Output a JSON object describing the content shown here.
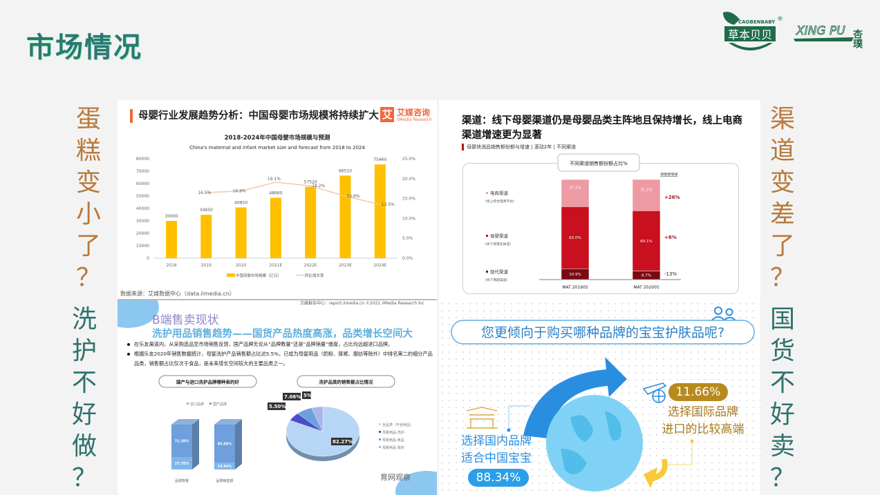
{
  "slide": {
    "title": "市场情况",
    "left_captions": [
      "蛋糕变小了？",
      "洗护不好做？"
    ],
    "right_captions": [
      "渠道变差了？",
      "国货不好卖？"
    ],
    "colors": {
      "orange_caption": "#b9793b",
      "teal_caption": "#2e716d",
      "title": "#2f7673"
    }
  },
  "logos": {
    "brand1_en": "CAOBENBABY",
    "brand1_cn": "草本贝贝",
    "brand2_en": "XING PU",
    "brand2_cn": "杏璞",
    "registered": "®"
  },
  "panel1": {
    "heading": "母婴行业发展趋势分析：中国母婴市场规模将持续扩大",
    "brand_cn": "艾媒咨询",
    "brand_en": "iiMedia Research",
    "brand_icon": "艾",
    "source": "数据来源：艾媒数据中心（data.iimedia.cn）",
    "footer": "艾媒报告中心：report.iimedia.cn  ©2021  iiMedia Research Inc"
  },
  "panel2": {
    "heading": "渠道：线下母婴渠道仍是母婴品类主阵地且保持增长，线上电商渠道增速更为显著",
    "subheading": "母婴快消品销售额份额与增速 | 滚动2年 | 不同渠道"
  },
  "panel3": {
    "heading": "B端售卖现状",
    "subtitle": "洗护用品销售趋势——国货产品热度高涨，品类增长空间大",
    "bullets": [
      "在乐友渠道内，从采购选品至市场销售反馈，国产品牌无论从“品牌数量”还是“品牌销量”维度，占比均远超进口品牌。",
      "根据乐友2020年销售数据统计，母婴洗护产品销售额占比达5.5%，已成为母婴用品（奶粉、尿裤、服纺等除外）中排名第二的细分产品品类，销售额占比仅次于食品，是未来增长空间较大的主要品类之一。"
    ],
    "watermark": "育网观察"
  },
  "panel4": {
    "question": "您更倾向于购买哪种品牌的宝宝护肤品呢?",
    "domestic_label": [
      "选择国内品牌",
      "适合中国宝宝"
    ],
    "domestic_value": "88.34%",
    "intl_label": [
      "选择国际品牌",
      "进口的比较高端"
    ],
    "intl_value": "11.66%",
    "icons": [
      "users-icon",
      "gate-tower-icon",
      "airplane-globe-icon",
      "globe-icon",
      "curved-arrow-icon"
    ]
  },
  "chart_data": [
    {
      "type": "bar",
      "title": "2018-2024年中国母婴市场规模与预测",
      "subtitle": "China's maternal and infant market size and forecast from 2018 to 2024",
      "categories": [
        "2018",
        "2019",
        "2020",
        "2021E",
        "2022E",
        "2023E",
        "2024E"
      ],
      "series": [
        {
          "name": "中国母婴市场规模（亿元）",
          "type": "bar",
          "axis": "left",
          "color": "#ffc000",
          "values": [
            30000,
            34950,
            40850,
            48660,
            57520,
            66510,
            75460
          ]
        },
        {
          "name": "同比增长率",
          "type": "line",
          "axis": "right",
          "color": "#f6c3a1",
          "values": [
            null,
            16.5,
            16.9,
            19.1,
            18.2,
            15.6,
            13.5
          ]
        }
      ],
      "y_left": {
        "range": [
          0,
          80000
        ],
        "ticks": [
          "0",
          "10000",
          "20000",
          "30000",
          "40000",
          "50000",
          "60000",
          "70000",
          "80000"
        ]
      },
      "y_right": {
        "range": [
          0,
          25
        ],
        "ticks": [
          "0.0%",
          "5.0%",
          "10.0%",
          "15.0%",
          "20.0%",
          "25.0%"
        ]
      },
      "legend": "bottom"
    },
    {
      "type": "bar",
      "stacked": true,
      "title": "不同渠道销售额份额占比%",
      "growth_header": "销售额增速",
      "categories": [
        "MAT 201905",
        "MAT 202005"
      ],
      "series": [
        {
          "name": "现代渠道",
          "note": "（线下商超渠道）",
          "color": "#7a0a12",
          "values": [
            10.9,
            8.7
          ],
          "growth": "-13%"
        },
        {
          "name": "母婴渠道",
          "note": "（线下母婴实体店）",
          "color": "#c8101e",
          "values": [
            62.0,
            60.1
          ],
          "growth": "+6%"
        },
        {
          "name": "电商渠道",
          "note": "（线上综合电商平台）",
          "color": "#ee9aa3",
          "values": [
            27.1,
            31.2
          ],
          "growth": "+26%"
        }
      ],
      "legend": "left"
    },
    {
      "type": "bar",
      "stacked": true,
      "title": "国产与进口洗护品牌哪种卖的好",
      "categories": [
        "品牌数量",
        "品牌销售额"
      ],
      "series": [
        {
          "name": "进口品牌",
          "color": "#7fb6ea",
          "values": [
            27.7,
            14.94
          ]
        },
        {
          "name": "国产品牌",
          "color": "#6f9fdc",
          "values": [
            72.3,
            85.06
          ]
        }
      ],
      "legend": "top"
    },
    {
      "type": "pie",
      "title": "洗护品类的销售额占比情况",
      "labels": [
        "全品类（不含用品）",
        "母婴用品-洗护",
        "母婴用品-食品",
        "母婴用品-其他"
      ],
      "values": [
        82.27,
        5.5,
        7.06,
        5
      ],
      "value_labels": [
        "82.27%",
        "5.50%",
        "7.06%",
        "5%"
      ],
      "colors": [
        "#b7d6f5",
        "#4b4fc9",
        "#6d9fdc",
        "#a9b4ec"
      ],
      "legend": "right"
    }
  ]
}
